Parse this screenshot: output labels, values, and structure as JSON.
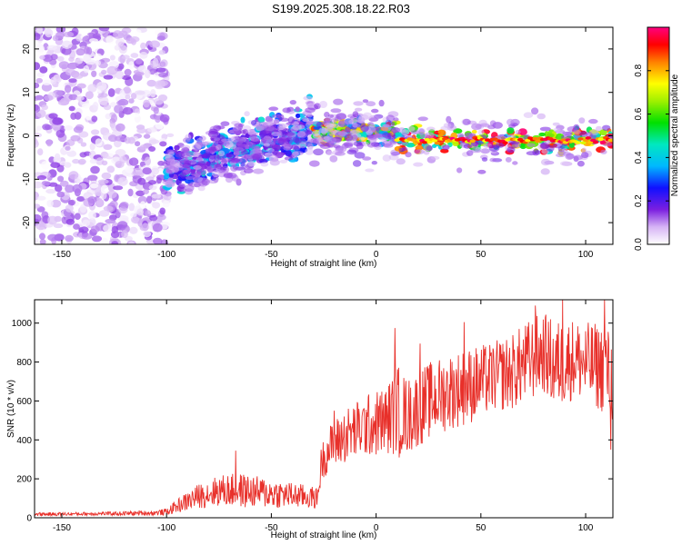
{
  "title": "S199.2025.308.18.22.R03",
  "colors": {
    "snr_line": "#e8302a",
    "axis": "#000000",
    "background": "#ffffff"
  },
  "chart_data": [
    {
      "type": "heatmap",
      "name": "spectrogram",
      "xlabel": "Height of straight line (km)",
      "ylabel": "Frequency (Hz)",
      "xlim": [
        -163,
        113
      ],
      "ylim": [
        -25,
        25
      ],
      "xticks": [
        -150,
        -100,
        -50,
        0,
        50,
        100
      ],
      "yticks": [
        -20,
        -10,
        0,
        10,
        20
      ],
      "colorbar": {
        "label": "Normalized spectral amplitude",
        "range": [
          0.0,
          1.0
        ],
        "ticks": [
          0.0,
          0.2,
          0.4,
          0.6,
          0.8
        ],
        "tick_labels": [
          "0.0",
          "0.2",
          "0.4",
          "0.6",
          "0.8"
        ]
      },
      "regions": [
        {
          "x_from": -163,
          "x_to": -100,
          "freq_center": 0,
          "freq_spread": 25,
          "amplitude": [
            0.0,
            0.15
          ],
          "description": "noise"
        },
        {
          "x_from": -100,
          "x_to": -30,
          "freq_center_start": -8,
          "freq_center_end": 2,
          "amplitude": [
            0.1,
            0.45
          ]
        },
        {
          "x_from": -30,
          "x_to": 10,
          "freq_center": 1,
          "amplitude": [
            0.3,
            0.9
          ]
        },
        {
          "x_from": 10,
          "x_to": 113,
          "freq_center": -1,
          "amplitude": [
            0.4,
            1.0
          ]
        }
      ]
    },
    {
      "type": "line",
      "name": "snr",
      "xlabel": "Height of straight line (km)",
      "ylabel": "SNR (10 * v/v)",
      "xlim": [
        -163,
        113
      ],
      "ylim": [
        0,
        1120
      ],
      "xticks": [
        -150,
        -100,
        -50,
        0,
        50,
        100
      ],
      "yticks": [
        0,
        200,
        400,
        600,
        800,
        1000
      ],
      "envelope": {
        "x": [
          -163,
          -140,
          -120,
          -105,
          -100,
          -95,
          -85,
          -75,
          -65,
          -55,
          -45,
          -35,
          -28,
          -26,
          -22,
          -15,
          -5,
          5,
          10,
          15,
          25,
          35,
          45,
          55,
          65,
          75,
          80,
          85,
          90,
          95,
          100,
          105,
          110,
          113
        ],
        "mean": [
          18,
          20,
          22,
          25,
          30,
          60,
          110,
          140,
          140,
          130,
          120,
          110,
          100,
          290,
          360,
          420,
          470,
          500,
          560,
          520,
          600,
          650,
          680,
          720,
          750,
          820,
          850,
          780,
          800,
          820,
          790,
          780,
          760,
          700
        ],
        "spread": [
          10,
          10,
          12,
          15,
          20,
          40,
          70,
          90,
          100,
          90,
          80,
          70,
          60,
          110,
          130,
          160,
          180,
          200,
          260,
          220,
          220,
          220,
          220,
          200,
          220,
          240,
          230,
          260,
          250,
          230,
          240,
          250,
          260,
          250
        ]
      },
      "peaks": [
        {
          "x": -67,
          "y": 345
        },
        {
          "x": -20,
          "y": 550
        },
        {
          "x": 9,
          "y": 975
        },
        {
          "x": 11,
          "y": 310
        },
        {
          "x": 21,
          "y": 895
        },
        {
          "x": 42,
          "y": 1005
        },
        {
          "x": 76,
          "y": 1090
        },
        {
          "x": 89,
          "y": 1120
        },
        {
          "x": 109,
          "y": 1120
        },
        {
          "x": 112,
          "y": 350
        }
      ]
    }
  ]
}
